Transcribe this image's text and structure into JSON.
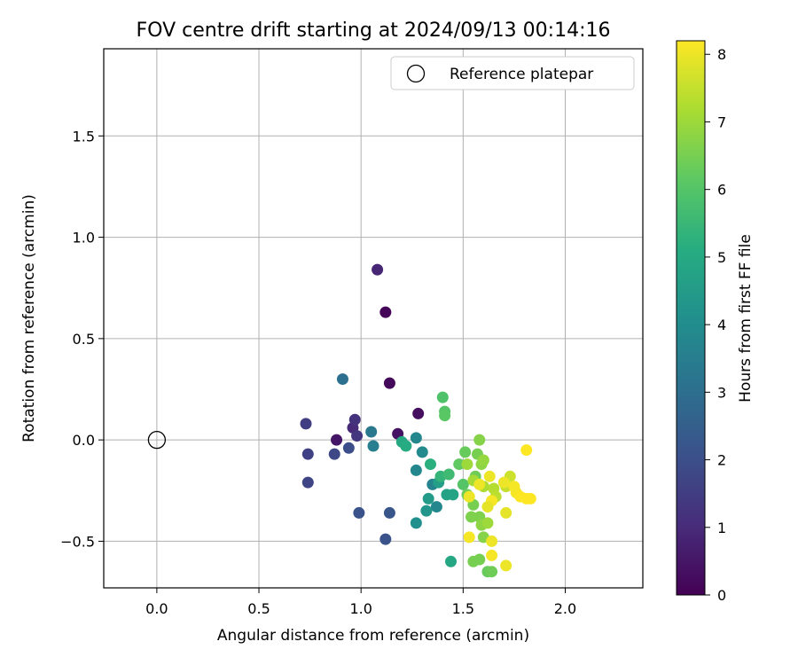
{
  "chart_data": {
    "type": "scatter",
    "title": "FOV centre drift starting at 2024/09/13 00:14:16",
    "xlabel": "Angular distance from reference (arcmin)",
    "ylabel": "Rotation from reference (arcmin)",
    "xlim": [
      -0.26,
      2.38
    ],
    "ylim": [
      -0.73,
      1.93
    ],
    "x_ticks": [
      0.0,
      0.5,
      1.0,
      1.5,
      2.0
    ],
    "x_tick_labels": [
      "0.0",
      "0.5",
      "1.0",
      "1.5",
      "2.0"
    ],
    "y_ticks": [
      -0.5,
      0.0,
      0.5,
      1.0,
      1.5
    ],
    "y_tick_labels": [
      "−0.5",
      "0.0",
      "0.5",
      "1.0",
      "1.5"
    ],
    "grid": true,
    "colormap": "viridis",
    "colorbar": {
      "label": "Hours from first FF file",
      "range": [
        0,
        8.2
      ],
      "ticks": [
        0,
        1,
        2,
        3,
        4,
        5,
        6,
        7,
        8
      ],
      "tick_labels": [
        "0",
        "1",
        "2",
        "3",
        "4",
        "5",
        "6",
        "7",
        "8"
      ]
    },
    "legend": {
      "placement": "upper-right",
      "entries": [
        "Reference platepar"
      ]
    },
    "reference_point": {
      "x": 0.0,
      "y": 0.0,
      "marker": "hollow-circle",
      "color": "#000000"
    },
    "points": [
      {
        "x": 1.08,
        "y": 0.84,
        "c": 0.9
      },
      {
        "x": 1.12,
        "y": 0.63,
        "c": 0.1
      },
      {
        "x": 1.14,
        "y": 0.28,
        "c": 0.2
      },
      {
        "x": 1.28,
        "y": 0.13,
        "c": 0.3
      },
      {
        "x": 1.18,
        "y": 0.03,
        "c": 0.4
      },
      {
        "x": 0.88,
        "y": 0.0,
        "c": 0.5
      },
      {
        "x": 0.96,
        "y": 0.06,
        "c": 1.0
      },
      {
        "x": 0.97,
        "y": 0.1,
        "c": 1.2
      },
      {
        "x": 0.98,
        "y": 0.02,
        "c": 1.3
      },
      {
        "x": 0.73,
        "y": 0.08,
        "c": 1.5
      },
      {
        "x": 0.74,
        "y": -0.07,
        "c": 1.6
      },
      {
        "x": 0.74,
        "y": -0.21,
        "c": 1.7
      },
      {
        "x": 0.87,
        "y": -0.07,
        "c": 1.8
      },
      {
        "x": 0.94,
        "y": -0.04,
        "c": 2.0
      },
      {
        "x": 0.99,
        "y": -0.36,
        "c": 2.1
      },
      {
        "x": 1.14,
        "y": -0.36,
        "c": 2.2
      },
      {
        "x": 1.12,
        "y": -0.49,
        "c": 2.1
      },
      {
        "x": 0.91,
        "y": 0.3,
        "c": 3.0
      },
      {
        "x": 1.05,
        "y": 0.04,
        "c": 3.3
      },
      {
        "x": 1.06,
        "y": -0.03,
        "c": 3.5
      },
      {
        "x": 1.27,
        "y": 0.01,
        "c": 3.8
      },
      {
        "x": 1.3,
        "y": -0.06,
        "c": 3.9
      },
      {
        "x": 1.27,
        "y": -0.15,
        "c": 3.8
      },
      {
        "x": 1.35,
        "y": -0.22,
        "c": 3.7
      },
      {
        "x": 1.37,
        "y": -0.33,
        "c": 3.8
      },
      {
        "x": 1.27,
        "y": -0.41,
        "c": 4.1
      },
      {
        "x": 1.32,
        "y": -0.35,
        "c": 4.3
      },
      {
        "x": 1.33,
        "y": -0.29,
        "c": 4.5
      },
      {
        "x": 1.38,
        "y": -0.21,
        "c": 4.6
      },
      {
        "x": 1.42,
        "y": -0.27,
        "c": 4.7
      },
      {
        "x": 1.45,
        "y": -0.27,
        "c": 4.8
      },
      {
        "x": 1.44,
        "y": -0.6,
        "c": 4.9
      },
      {
        "x": 1.2,
        "y": -0.01,
        "c": 5.0
      },
      {
        "x": 1.22,
        "y": -0.03,
        "c": 5.1
      },
      {
        "x": 1.34,
        "y": -0.12,
        "c": 5.2
      },
      {
        "x": 1.39,
        "y": -0.18,
        "c": 5.4
      },
      {
        "x": 1.43,
        "y": -0.17,
        "c": 5.6
      },
      {
        "x": 1.4,
        "y": 0.21,
        "c": 5.9
      },
      {
        "x": 1.41,
        "y": 0.14,
        "c": 6.0
      },
      {
        "x": 1.41,
        "y": 0.12,
        "c": 6.1
      },
      {
        "x": 1.48,
        "y": -0.12,
        "c": 6.2
      },
      {
        "x": 1.51,
        "y": -0.06,
        "c": 6.3
      },
      {
        "x": 1.5,
        "y": -0.22,
        "c": 6.0
      },
      {
        "x": 1.52,
        "y": -0.27,
        "c": 6.4
      },
      {
        "x": 1.55,
        "y": -0.32,
        "c": 6.5
      },
      {
        "x": 1.54,
        "y": -0.38,
        "c": 6.6
      },
      {
        "x": 1.57,
        "y": -0.07,
        "c": 6.5
      },
      {
        "x": 1.58,
        "y": 0.0,
        "c": 6.7
      },
      {
        "x": 1.59,
        "y": -0.12,
        "c": 6.8
      },
      {
        "x": 1.6,
        "y": -0.1,
        "c": 6.9
      },
      {
        "x": 1.56,
        "y": -0.18,
        "c": 6.4
      },
      {
        "x": 1.58,
        "y": -0.38,
        "c": 6.6
      },
      {
        "x": 1.59,
        "y": -0.42,
        "c": 6.8
      },
      {
        "x": 1.6,
        "y": -0.48,
        "c": 6.7
      },
      {
        "x": 1.58,
        "y": -0.59,
        "c": 6.5
      },
      {
        "x": 1.55,
        "y": -0.6,
        "c": 6.5
      },
      {
        "x": 1.62,
        "y": -0.65,
        "c": 6.3
      },
      {
        "x": 1.64,
        "y": -0.65,
        "c": 6.4
      },
      {
        "x": 1.52,
        "y": -0.12,
        "c": 7.0
      },
      {
        "x": 1.55,
        "y": -0.2,
        "c": 7.1
      },
      {
        "x": 1.6,
        "y": -0.23,
        "c": 7.2
      },
      {
        "x": 1.62,
        "y": -0.41,
        "c": 7.0
      },
      {
        "x": 1.65,
        "y": -0.24,
        "c": 7.3
      },
      {
        "x": 1.66,
        "y": -0.28,
        "c": 7.4
      },
      {
        "x": 1.71,
        "y": -0.23,
        "c": 7.5
      },
      {
        "x": 1.73,
        "y": -0.18,
        "c": 7.6
      },
      {
        "x": 1.58,
        "y": -0.22,
        "c": 8.0
      },
      {
        "x": 1.63,
        "y": -0.18,
        "c": 8.0
      },
      {
        "x": 1.64,
        "y": -0.3,
        "c": 8.1
      },
      {
        "x": 1.62,
        "y": -0.33,
        "c": 7.9
      },
      {
        "x": 1.53,
        "y": -0.28,
        "c": 8.0
      },
      {
        "x": 1.53,
        "y": -0.48,
        "c": 8.1
      },
      {
        "x": 1.64,
        "y": -0.5,
        "c": 8.0
      },
      {
        "x": 1.64,
        "y": -0.57,
        "c": 8.1
      },
      {
        "x": 1.71,
        "y": -0.62,
        "c": 8.0
      },
      {
        "x": 1.71,
        "y": -0.36,
        "c": 7.9
      },
      {
        "x": 1.7,
        "y": -0.21,
        "c": 8.0
      },
      {
        "x": 1.75,
        "y": -0.23,
        "c": 8.1
      },
      {
        "x": 1.76,
        "y": -0.26,
        "c": 8.1
      },
      {
        "x": 1.78,
        "y": -0.28,
        "c": 8.2
      },
      {
        "x": 1.81,
        "y": -0.29,
        "c": 8.2
      },
      {
        "x": 1.83,
        "y": -0.29,
        "c": 8.2
      },
      {
        "x": 1.81,
        "y": -0.05,
        "c": 8.2
      }
    ]
  }
}
